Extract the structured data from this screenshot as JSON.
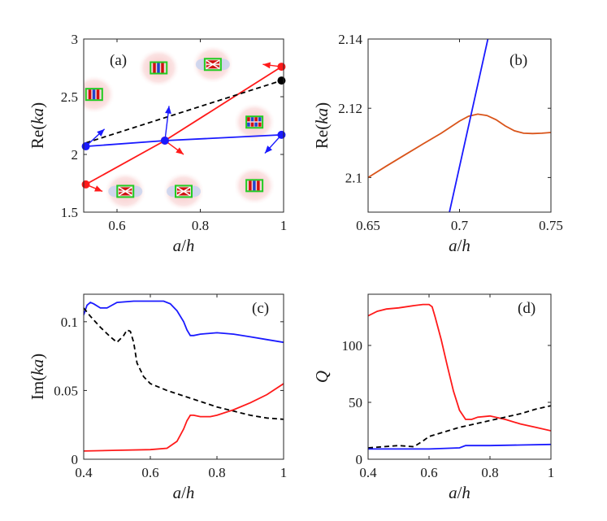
{
  "chart_data": [
    {
      "id": "a",
      "type": "line",
      "panel_label": "(a)",
      "xlabel": "a/h",
      "ylabel": "Re(ka)",
      "xlim": [
        0.52,
        1.0
      ],
      "ylim": [
        1.5,
        3.0
      ],
      "xticks": [
        0.6,
        0.8,
        1
      ],
      "xtick_labels": [
        "0.6",
        "0.8",
        "1"
      ],
      "yticks": [
        1.5,
        2,
        2.5,
        3
      ],
      "ytick_labels": [
        "1.5",
        "2",
        "2.5",
        "3"
      ],
      "series": [
        {
          "name": "red",
          "color": "#ff1a1a",
          "style": "solid",
          "x": [
            0.525,
            0.715,
            0.995
          ],
          "y": [
            1.74,
            2.12,
            2.76
          ]
        },
        {
          "name": "blue",
          "color": "#1a1aff",
          "style": "solid",
          "x": [
            0.525,
            0.715,
            0.995
          ],
          "y": [
            2.07,
            2.12,
            2.17
          ]
        },
        {
          "name": "black",
          "color": "#000000",
          "style": "dashed",
          "x": [
            0.525,
            0.995
          ],
          "y": [
            2.1,
            2.64
          ]
        }
      ],
      "markers": [
        {
          "x": 0.525,
          "y": 1.74,
          "color": "#ff1a1a"
        },
        {
          "x": 0.715,
          "y": 2.12,
          "color": "#ff1a1a"
        },
        {
          "x": 0.995,
          "y": 2.76,
          "color": "#ff1a1a"
        },
        {
          "x": 0.525,
          "y": 2.07,
          "color": "#1a1aff"
        },
        {
          "x": 0.715,
          "y": 2.12,
          "color": "#1a1aff"
        },
        {
          "x": 0.995,
          "y": 2.17,
          "color": "#1a1aff"
        },
        {
          "x": 0.995,
          "y": 2.64,
          "color": "#000000"
        }
      ],
      "insets": [
        {
          "name": "mode-inset-1",
          "x": 0.545,
          "y": 2.52,
          "kind": "vertical-stripes"
        },
        {
          "name": "mode-inset-2",
          "x": 0.7,
          "y": 2.75,
          "kind": "vertical-stripes"
        },
        {
          "name": "mode-inset-3",
          "x": 0.83,
          "y": 2.78,
          "kind": "cross"
        },
        {
          "name": "mode-inset-4",
          "x": 0.93,
          "y": 2.28,
          "kind": "checker"
        },
        {
          "name": "mode-inset-5",
          "x": 0.62,
          "y": 1.68,
          "kind": "cross"
        },
        {
          "name": "mode-inset-6",
          "x": 0.76,
          "y": 1.68,
          "kind": "cross"
        },
        {
          "name": "mode-inset-7",
          "x": 0.93,
          "y": 1.73,
          "kind": "vertical-stripes"
        }
      ],
      "arrows": [
        {
          "x1": 0.525,
          "y1": 1.74,
          "x2": 0.565,
          "y2": 1.68,
          "color": "#ff1a1a"
        },
        {
          "x1": 0.715,
          "y1": 2.12,
          "x2": 0.76,
          "y2": 2.0,
          "color": "#ff1a1a"
        },
        {
          "x1": 0.995,
          "y1": 2.76,
          "x2": 0.95,
          "y2": 2.78,
          "color": "#ff1a1a"
        },
        {
          "x1": 0.525,
          "y1": 2.07,
          "x2": 0.57,
          "y2": 2.22,
          "color": "#1a1aff"
        },
        {
          "x1": 0.715,
          "y1": 2.12,
          "x2": 0.725,
          "y2": 2.42,
          "color": "#1a1aff"
        },
        {
          "x1": 0.995,
          "y1": 2.17,
          "x2": 0.955,
          "y2": 2.01,
          "color": "#1a1aff"
        }
      ]
    },
    {
      "id": "b",
      "type": "line",
      "panel_label": "(b)",
      "xlabel": "a/h",
      "ylabel": "Re(ka)",
      "xlim": [
        0.65,
        0.75
      ],
      "ylim": [
        2.09,
        2.14
      ],
      "xticks": [
        0.65,
        0.7,
        0.75
      ],
      "xtick_labels": [
        "0.65",
        "0.7",
        "0.75"
      ],
      "yticks": [
        2.1,
        2.12,
        2.14
      ],
      "ytick_labels": [
        "2.1",
        "2.12",
        "2.14"
      ],
      "series": [
        {
          "name": "orange",
          "color": "#d9541a",
          "style": "solid",
          "x": [
            0.65,
            0.66,
            0.67,
            0.68,
            0.69,
            0.7,
            0.705,
            0.71,
            0.715,
            0.72,
            0.725,
            0.73,
            0.735,
            0.74,
            0.745,
            0.75
          ],
          "y": [
            2.1,
            2.1033,
            2.1065,
            2.1097,
            2.1128,
            2.1163,
            2.1177,
            2.1183,
            2.1179,
            2.1167,
            2.1149,
            2.1135,
            2.1128,
            2.1127,
            2.1128,
            2.113
          ]
        },
        {
          "name": "blue",
          "color": "#1a1aff",
          "style": "solid",
          "x": [
            0.6945,
            0.7155
          ],
          "y": [
            2.09,
            2.14
          ]
        }
      ]
    },
    {
      "id": "c",
      "type": "line",
      "panel_label": "(c)",
      "xlabel": "a/h",
      "ylabel": "Im(ka)",
      "xlim": [
        0.4,
        1.0
      ],
      "ylim": [
        0,
        0.12
      ],
      "xticks": [
        0.4,
        0.6,
        0.8,
        1
      ],
      "xtick_labels": [
        "0.4",
        "0.6",
        "0.8",
        "1"
      ],
      "yticks": [
        0,
        0.05,
        0.1
      ],
      "ytick_labels": [
        "0",
        "0.05",
        "0.1"
      ],
      "series": [
        {
          "name": "blue",
          "color": "#1a1aff",
          "style": "solid",
          "x": [
            0.4,
            0.41,
            0.42,
            0.43,
            0.45,
            0.47,
            0.5,
            0.55,
            0.6,
            0.64,
            0.66,
            0.68,
            0.7,
            0.71,
            0.72,
            0.73,
            0.75,
            0.8,
            0.85,
            0.9,
            0.95,
            1.0
          ],
          "y": [
            0.105,
            0.112,
            0.114,
            0.113,
            0.11,
            0.11,
            0.114,
            0.115,
            0.115,
            0.115,
            0.113,
            0.108,
            0.1,
            0.094,
            0.09,
            0.09,
            0.091,
            0.092,
            0.091,
            0.089,
            0.087,
            0.085
          ]
        },
        {
          "name": "black",
          "color": "#000000",
          "style": "dashed",
          "x": [
            0.4,
            0.42,
            0.45,
            0.48,
            0.5,
            0.52,
            0.53,
            0.54,
            0.55,
            0.56,
            0.58,
            0.6,
            0.65,
            0.7,
            0.75,
            0.8,
            0.85,
            0.9,
            0.95,
            1.0
          ],
          "y": [
            0.11,
            0.104,
            0.096,
            0.089,
            0.085,
            0.09,
            0.094,
            0.093,
            0.085,
            0.07,
            0.06,
            0.055,
            0.05,
            0.046,
            0.042,
            0.038,
            0.035,
            0.032,
            0.03,
            0.029
          ]
        },
        {
          "name": "red",
          "color": "#ff1a1a",
          "style": "solid",
          "x": [
            0.4,
            0.5,
            0.6,
            0.65,
            0.68,
            0.7,
            0.71,
            0.72,
            0.73,
            0.75,
            0.78,
            0.8,
            0.85,
            0.9,
            0.95,
            1.0
          ],
          "y": [
            0.006,
            0.0065,
            0.007,
            0.008,
            0.013,
            0.022,
            0.028,
            0.032,
            0.032,
            0.031,
            0.031,
            0.032,
            0.036,
            0.041,
            0.047,
            0.055
          ]
        }
      ]
    },
    {
      "id": "d",
      "type": "line",
      "panel_label": "(d)",
      "xlabel": "a/h",
      "ylabel": "Q",
      "xlim": [
        0.4,
        1.0
      ],
      "ylim": [
        0,
        145
      ],
      "xticks": [
        0.4,
        0.6,
        0.8,
        1
      ],
      "xtick_labels": [
        "0.4",
        "0.6",
        "0.8",
        "1"
      ],
      "yticks": [
        0,
        50,
        100
      ],
      "ytick_labels": [
        "0",
        "50",
        "100"
      ],
      "series": [
        {
          "name": "red",
          "color": "#ff1a1a",
          "style": "solid",
          "x": [
            0.4,
            0.43,
            0.46,
            0.5,
            0.55,
            0.58,
            0.6,
            0.61,
            0.62,
            0.64,
            0.66,
            0.68,
            0.7,
            0.72,
            0.74,
            0.76,
            0.8,
            0.85,
            0.9,
            0.95,
            1.0
          ],
          "y": [
            126,
            130,
            132,
            133,
            135,
            136,
            136,
            134,
            125,
            105,
            82,
            60,
            43,
            35,
            35,
            37,
            38,
            35,
            31,
            28,
            25
          ]
        },
        {
          "name": "black",
          "color": "#000000",
          "style": "dashed",
          "x": [
            0.4,
            0.45,
            0.5,
            0.55,
            0.58,
            0.6,
            0.65,
            0.7,
            0.75,
            0.8,
            0.85,
            0.9,
            0.95,
            1.0
          ],
          "y": [
            10,
            11,
            12,
            11,
            16,
            20,
            24,
            28,
            31,
            34,
            37,
            40,
            44,
            47
          ]
        },
        {
          "name": "blue",
          "color": "#1a1aff",
          "style": "solid",
          "x": [
            0.4,
            0.5,
            0.6,
            0.7,
            0.72,
            0.75,
            0.8,
            0.9,
            1.0
          ],
          "y": [
            9,
            9,
            9,
            10,
            12,
            12,
            12,
            12.5,
            13
          ]
        }
      ]
    }
  ]
}
